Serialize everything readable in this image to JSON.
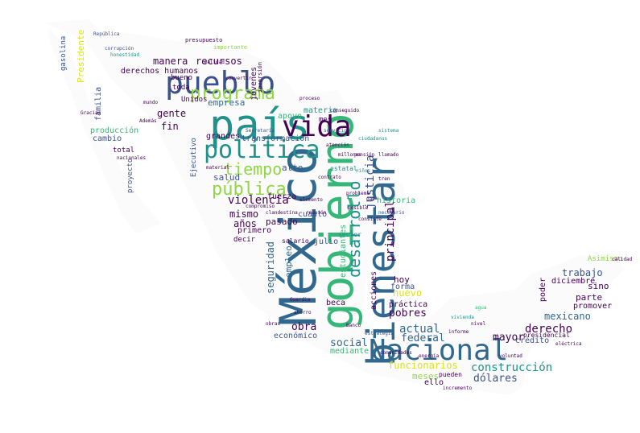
{
  "palette": {
    "dark_purple": "#440154",
    "indigo": "#3b528b",
    "slate": "#31688e",
    "teal": "#21918c",
    "green": "#35b779",
    "lime": "#90d743",
    "yellow": "#dde318"
  },
  "words": [
    {
      "text": "México",
      "color": "#31688e"
    },
    {
      "text": "gobierno",
      "color": "#35b779"
    },
    {
      "text": "bienestar",
      "color": "#31688e"
    },
    {
      "text": "Nacional",
      "color": "#31688e"
    },
    {
      "text": "país",
      "color": "#21918c"
    },
    {
      "text": "pueblo",
      "color": "#3b528b"
    },
    {
      "text": "vida",
      "color": "#440154"
    },
    {
      "text": "política",
      "color": "#21918c"
    },
    {
      "text": "programa",
      "color": "#90d743"
    },
    {
      "text": "desarrollo",
      "color": "#21918c"
    },
    {
      "text": "pública",
      "color": "#90d743"
    },
    {
      "text": "tiempo",
      "color": "#90d743"
    },
    {
      "text": "justicia",
      "color": "#3b528b"
    },
    {
      "text": "violencia",
      "color": "#440154"
    },
    {
      "text": "principal",
      "color": "#440154"
    },
    {
      "text": "construcción",
      "color": "#21918c"
    },
    {
      "text": "dólares",
      "color": "#3b528b"
    },
    {
      "text": "derecho",
      "color": "#440154"
    },
    {
      "text": "mexicano",
      "color": "#31688e"
    },
    {
      "text": "mayor",
      "color": "#440154"
    },
    {
      "text": "actual",
      "color": "#31688e"
    },
    {
      "text": "social",
      "color": "#31688e"
    },
    {
      "text": "federal",
      "color": "#31688e"
    },
    {
      "text": "pobres",
      "color": "#440154"
    },
    {
      "text": "obra",
      "color": "#440154"
    },
    {
      "text": "funcionarios",
      "color": "#dde318"
    },
    {
      "text": "meses",
      "color": "#90d743"
    },
    {
      "text": "ello",
      "color": "#440154"
    },
    {
      "text": "pueden",
      "color": "#440154"
    },
    {
      "text": "recursos",
      "color": "#440154"
    },
    {
      "text": "manera",
      "color": "#440154"
    },
    {
      "text": "derechos humanos",
      "color": "#440154"
    },
    {
      "text": "empresa",
      "color": "#31688e"
    },
    {
      "text": "gente",
      "color": "#440154"
    },
    {
      "text": "jóvenes",
      "color": "#440154"
    },
    {
      "text": "materia",
      "color": "#21918c"
    },
    {
      "text": "apoyo",
      "color": "#35b779"
    },
    {
      "text": "mes",
      "color": "#440154"
    },
    {
      "text": "fin",
      "color": "#440154"
    },
    {
      "text": "grandes",
      "color": "#440154"
    },
    {
      "text": "transformación",
      "color": "#3b528b"
    },
    {
      "text": "salud",
      "color": "#3b528b"
    },
    {
      "text": "alto",
      "color": "#3b528b"
    },
    {
      "text": "mismo",
      "color": "#440154"
    },
    {
      "text": "años",
      "color": "#440154"
    },
    {
      "text": "pasado",
      "color": "#440154"
    },
    {
      "text": "primero",
      "color": "#440154"
    },
    {
      "text": "decir",
      "color": "#440154"
    },
    {
      "text": "seguridad",
      "color": "#31688e"
    },
    {
      "text": "empleo",
      "color": "#31688e"
    },
    {
      "text": "estudiantes",
      "color": "#35b779"
    },
    {
      "text": "acciones",
      "color": "#440154"
    },
    {
      "text": "nuevo",
      "color": "#dde318"
    },
    {
      "text": "hoy",
      "color": "#440154"
    },
    {
      "text": "forma",
      "color": "#3b528b"
    },
    {
      "text": "práctica",
      "color": "#440154"
    },
    {
      "text": "historia",
      "color": "#35b779"
    },
    {
      "text": "trabajo",
      "color": "#3b528b"
    },
    {
      "text": "diciembre",
      "color": "#440154"
    },
    {
      "text": "sino",
      "color": "#440154"
    },
    {
      "text": "parte",
      "color": "#440154"
    },
    {
      "text": "promover",
      "color": "#440154"
    },
    {
      "text": "poder",
      "color": "#440154"
    },
    {
      "text": "Asimismo",
      "color": "#90d743"
    },
    {
      "text": "crédito",
      "color": "#3b528b"
    },
    {
      "text": "presidencial",
      "color": "#440154"
    },
    {
      "text": "mediante",
      "color": "#35b779"
    },
    {
      "text": "económico",
      "color": "#3b528b"
    },
    {
      "text": "beca",
      "color": "#440154"
    },
    {
      "text": "julio",
      "color": "#3b528b"
    },
    {
      "text": "fuerza",
      "color": "#440154"
    },
    {
      "text": "cuanto",
      "color": "#3b528b"
    },
    {
      "text": "gasolina",
      "color": "#3b528b"
    },
    {
      "text": "Presidente",
      "color": "#dde318"
    },
    {
      "text": "familia",
      "color": "#3b528b"
    },
    {
      "text": "producción",
      "color": "#35b779"
    },
    {
      "text": "cambio",
      "color": "#3b528b"
    },
    {
      "text": "total",
      "color": "#440154"
    },
    {
      "text": "proyecto",
      "color": "#3b528b"
    },
    {
      "text": "bueno",
      "color": "#440154"
    },
    {
      "text": "toda",
      "color": "#440154"
    },
    {
      "text": "Unidos",
      "color": "#440154"
    },
    {
      "text": "Ejecutivo",
      "color": "#3b528b"
    },
    {
      "text": "estatal",
      "color": "#21918c"
    },
    {
      "text": "salario",
      "color": "#440154"
    },
    {
      "text": "sector",
      "color": "#21918c"
    },
    {
      "text": "importante",
      "color": "#90d743"
    },
    {
      "text": "inversión",
      "color": "#440154"
    },
    {
      "text": "República",
      "color": "#3b528b"
    },
    {
      "text": "presupuesto",
      "color": "#440154"
    },
    {
      "text": "corrupción",
      "color": "#3b528b"
    },
    {
      "text": "honestidad",
      "color": "#21918c"
    },
    {
      "text": "proceso",
      "color": "#440154"
    },
    {
      "text": "atención",
      "color": "#440154"
    },
    {
      "text": "millones",
      "color": "#440154"
    },
    {
      "text": "niños",
      "color": "#21918c"
    },
    {
      "text": "nivel",
      "color": "#440154"
    },
    {
      "text": "informe",
      "color": "#440154"
    },
    {
      "text": "estrategia",
      "color": "#3b528b"
    },
    {
      "text": "vivienda",
      "color": "#21918c"
    },
    {
      "text": "comunidades",
      "color": "#440154"
    },
    {
      "text": "agua",
      "color": "#35b779"
    },
    {
      "text": "energía",
      "color": "#440154"
    },
    {
      "text": "paz",
      "color": "#440154"
    },
    {
      "text": "problema",
      "color": "#440154"
    },
    {
      "text": "necesario",
      "color": "#3b528b"
    },
    {
      "text": "consiste",
      "color": "#440154"
    },
    {
      "text": "posible",
      "color": "#440154"
    },
    {
      "text": "elemento",
      "color": "#440154"
    },
    {
      "text": "contrato",
      "color": "#440154"
    },
    {
      "text": "Secretaría",
      "color": "#3b528b"
    },
    {
      "text": "clandestina",
      "color": "#440154"
    },
    {
      "text": "compromiso",
      "color": "#440154"
    },
    {
      "text": "ahorro",
      "color": "#440154"
    },
    {
      "text": "incremento",
      "color": "#440154"
    },
    {
      "text": "Banco",
      "color": "#440154"
    },
    {
      "text": "mundo",
      "color": "#440154"
    },
    {
      "text": "Además",
      "color": "#440154"
    },
    {
      "text": "reunión",
      "color": "#440154"
    },
    {
      "text": "material",
      "color": "#440154"
    },
    {
      "text": "servicio",
      "color": "#3b528b"
    },
    {
      "text": "nacionales",
      "color": "#440154"
    },
    {
      "text": "Gracias",
      "color": "#440154"
    },
    {
      "text": "ciudadanos",
      "color": "#21918c"
    },
    {
      "text": "tren",
      "color": "#440154"
    },
    {
      "text": "calidad",
      "color": "#440154"
    },
    {
      "text": "voluntad",
      "color": "#440154"
    },
    {
      "text": "eléctrica",
      "color": "#440154"
    },
    {
      "text": "sistema",
      "color": "#21918c"
    },
    {
      "text": "pensión",
      "color": "#440154"
    },
    {
      "text": "obras",
      "color": "#440154"
    },
    {
      "text": "Guardia",
      "color": "#440154"
    },
    {
      "text": "llamado",
      "color": "#440154"
    },
    {
      "text": "conseguido",
      "color": "#440154"
    },
    {
      "text": "convertir",
      "color": "#440154"
    },
    {
      "text": "realidad",
      "color": "#440154"
    }
  ]
}
